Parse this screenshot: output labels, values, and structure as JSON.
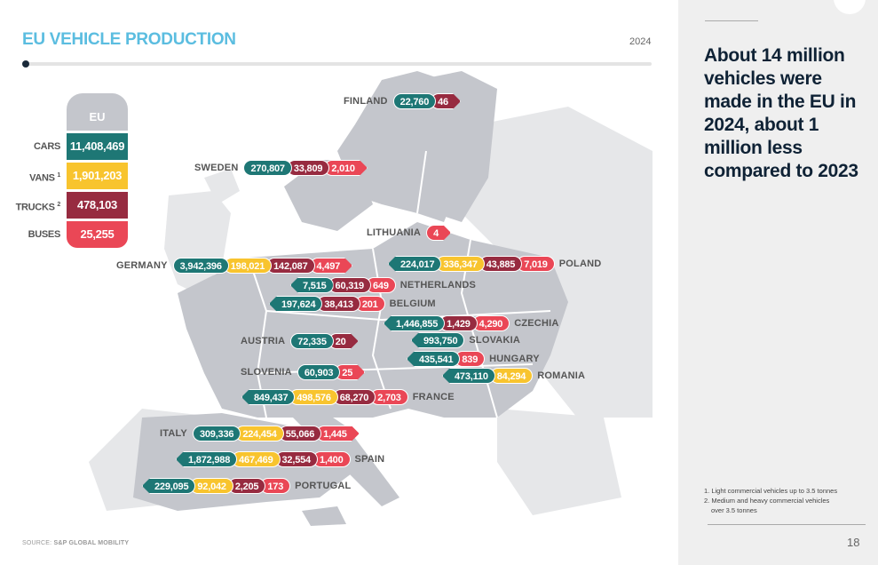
{
  "header": {
    "title": "EU VEHICLE PRODUCTION",
    "year": "2024"
  },
  "colors": {
    "cars": "#1e7775",
    "vans": "#f8c42e",
    "trucks": "#972b40",
    "buses": "#ea4756",
    "accent": "#5bbde0",
    "map_dark": "#c4c6cc",
    "map_light": "#e6e7e9"
  },
  "eu": {
    "label": "EU",
    "rows": [
      {
        "label": "CARS",
        "sup": "",
        "value": "11,408,469",
        "type": "cars"
      },
      {
        "label": "VANS",
        "sup": "1",
        "value": "1,901,203",
        "type": "vans"
      },
      {
        "label": "TRUCKS",
        "sup": "2",
        "value": "478,103",
        "type": "trucks"
      },
      {
        "label": "BUSES",
        "sup": "",
        "value": "25,255",
        "type": "buses"
      }
    ]
  },
  "countries": [
    {
      "name": "FINLAND",
      "dir": "right",
      "values": [
        [
          "cars",
          "22,760"
        ],
        [
          "trucks",
          "46"
        ]
      ]
    },
    {
      "name": "SWEDEN",
      "dir": "right",
      "values": [
        [
          "cars",
          "270,807"
        ],
        [
          "trucks",
          "33,809"
        ],
        [
          "buses",
          "2,010"
        ]
      ]
    },
    {
      "name": "LITHUANIA",
      "dir": "right",
      "values": [
        [
          "buses",
          "4"
        ]
      ]
    },
    {
      "name": "GERMANY",
      "dir": "right",
      "values": [
        [
          "cars",
          "3,942,396"
        ],
        [
          "vans",
          "198,021"
        ],
        [
          "trucks",
          "142,087"
        ],
        [
          "buses",
          "4,497"
        ]
      ]
    },
    {
      "name": "POLAND",
      "dir": "left",
      "values": [
        [
          "cars",
          "224,017"
        ],
        [
          "vans",
          "336,347"
        ],
        [
          "trucks",
          "43,885"
        ],
        [
          "buses",
          "7,019"
        ]
      ]
    },
    {
      "name": "NETHERLANDS",
      "dir": "left",
      "values": [
        [
          "cars",
          "7,515"
        ],
        [
          "trucks",
          "60,319"
        ],
        [
          "buses",
          "649"
        ]
      ]
    },
    {
      "name": "BELGIUM",
      "dir": "left",
      "values": [
        [
          "cars",
          "197,624"
        ],
        [
          "trucks",
          "38,413"
        ],
        [
          "buses",
          "201"
        ]
      ]
    },
    {
      "name": "CZECHIA",
      "dir": "left",
      "values": [
        [
          "cars",
          "1,446,855"
        ],
        [
          "trucks",
          "1,429"
        ],
        [
          "buses",
          "4,290"
        ]
      ]
    },
    {
      "name": "AUSTRIA",
      "dir": "right",
      "values": [
        [
          "cars",
          "72,335"
        ],
        [
          "trucks",
          "20"
        ]
      ]
    },
    {
      "name": "SLOVAKIA",
      "dir": "left",
      "values": [
        [
          "cars",
          "993,750"
        ]
      ]
    },
    {
      "name": "HUNGARY",
      "dir": "left",
      "values": [
        [
          "cars",
          "435,541"
        ],
        [
          "buses",
          "839"
        ]
      ]
    },
    {
      "name": "ROMANIA",
      "dir": "left",
      "values": [
        [
          "cars",
          "473,110"
        ],
        [
          "vans",
          "84,294"
        ]
      ]
    },
    {
      "name": "SLOVENIA",
      "dir": "right",
      "values": [
        [
          "cars",
          "60,903"
        ],
        [
          "buses",
          "25"
        ]
      ]
    },
    {
      "name": "FRANCE",
      "dir": "left",
      "values": [
        [
          "cars",
          "849,437"
        ],
        [
          "vans",
          "498,576"
        ],
        [
          "trucks",
          "68,270"
        ],
        [
          "buses",
          "2,703"
        ]
      ]
    },
    {
      "name": "ITALY",
      "dir": "right",
      "values": [
        [
          "cars",
          "309,336"
        ],
        [
          "vans",
          "224,454"
        ],
        [
          "trucks",
          "55,066"
        ],
        [
          "buses",
          "1,445"
        ]
      ]
    },
    {
      "name": "SPAIN",
      "dir": "left",
      "values": [
        [
          "cars",
          "1,872,988"
        ],
        [
          "vans",
          "467,469"
        ],
        [
          "trucks",
          "32,554"
        ],
        [
          "buses",
          "1,400"
        ]
      ]
    },
    {
      "name": "PORTUGAL",
      "dir": "left",
      "values": [
        [
          "cars",
          "229,095"
        ],
        [
          "vans",
          "92,042"
        ],
        [
          "trucks",
          "2,205"
        ],
        [
          "buses",
          "173"
        ]
      ]
    }
  ],
  "sidebar": {
    "headline": "About 14 million vehicles were made in the EU in 2024, about 1 million less compared to 2023",
    "notes": [
      "1. Light commercial vehicles up to 3.5 tonnes",
      "2. Medium and heavy commercial vehicles",
      "over 3.5 tonnes"
    ],
    "page_number": "18"
  },
  "source": {
    "label": "SOURCE:",
    "name": "S&P GLOBAL MOBILITY"
  }
}
